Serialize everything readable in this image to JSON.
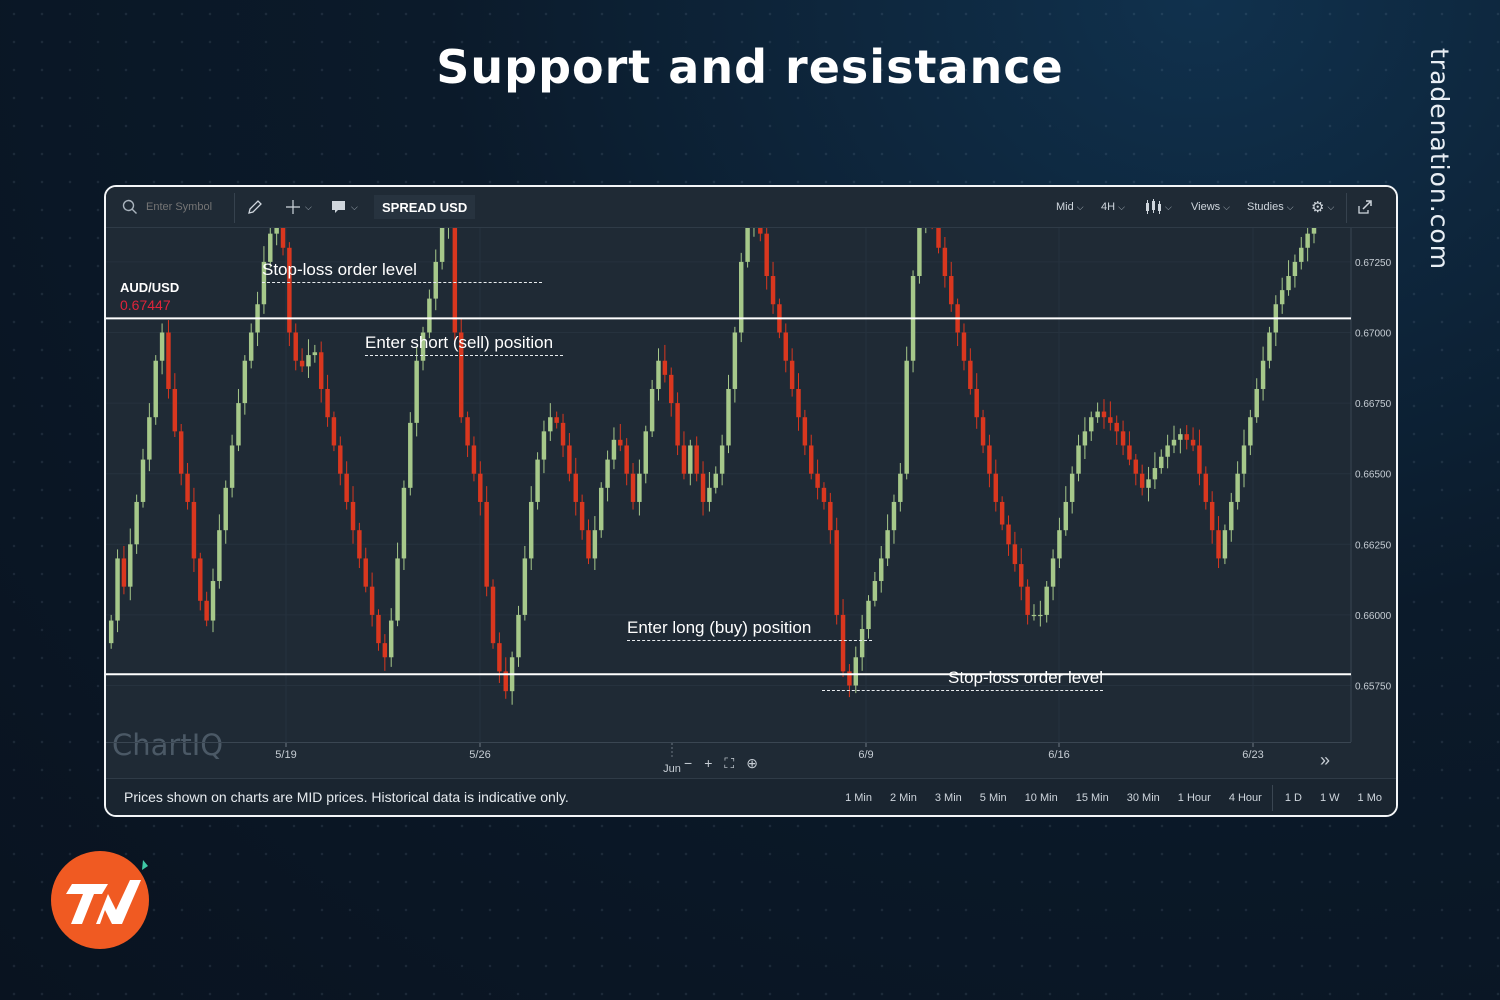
{
  "page": {
    "headline": "Support and resistance",
    "brand": "tradenation.com",
    "logo_icon": "tradenation-logo-icon"
  },
  "toolbar": {
    "symbol_placeholder": "Enter Symbol",
    "spread_label": "SPREAD USD",
    "mid_label": "Mid",
    "interval_label": "4H",
    "views_label": "Views",
    "studies_label": "Studies"
  },
  "symbol": {
    "name": "AUD/USD",
    "price": "0.67447"
  },
  "annotations": {
    "stop_loss_top": "Stop-loss order level",
    "enter_short": "Enter short (sell) position",
    "enter_long": "Enter long (buy) position",
    "stop_loss_bottom": "Stop-loss order level"
  },
  "footer": {
    "disclaimer": "Prices shown on charts are MID prices. Historical data is indicative only.",
    "ranges": [
      "1 Min",
      "2 Min",
      "3 Min",
      "5 Min",
      "10 Min",
      "15 Min",
      "30 Min",
      "1 Hour",
      "4 Hour",
      "1 D",
      "1 W",
      "1 Mo"
    ]
  },
  "watermark": "ChartIQ",
  "colors": {
    "up": "#a6c88a",
    "down": "#d9371f",
    "price_badge": "#c8351c",
    "level_line": "#ffffff"
  },
  "chart_data": {
    "type": "candlestick",
    "symbol": "AUD/USD",
    "interval": "4H",
    "y_ticks": [
      "0.67250",
      "0.67000",
      "0.66750",
      "0.66500",
      "0.66250",
      "0.66000",
      "0.65750"
    ],
    "ylim": [
      0.6555,
      0.6737
    ],
    "x_ticks": [
      "5/19",
      "5/26",
      "6/9",
      "6/16",
      "6/23"
    ],
    "x_month_label": "Jun",
    "current_price": "0.67447",
    "resistance": 0.6705,
    "support": 0.6579,
    "closes": [
      0.6598,
      0.662,
      0.661,
      0.6625,
      0.664,
      0.6655,
      0.667,
      0.669,
      0.67,
      0.668,
      0.6665,
      0.665,
      0.664,
      0.662,
      0.6605,
      0.6598,
      0.6612,
      0.663,
      0.6645,
      0.666,
      0.6675,
      0.669,
      0.67,
      0.671,
      0.6725,
      0.6735,
      0.6745,
      0.673,
      0.67,
      0.669,
      0.6688,
      0.6692,
      0.6693,
      0.668,
      0.667,
      0.666,
      0.665,
      0.664,
      0.663,
      0.662,
      0.661,
      0.66,
      0.659,
      0.6585,
      0.6598,
      0.662,
      0.6645,
      0.6668,
      0.669,
      0.67,
      0.6712,
      0.6725,
      0.6738,
      0.6744,
      0.67,
      0.667,
      0.666,
      0.665,
      0.664,
      0.661,
      0.659,
      0.658,
      0.6573,
      0.6585,
      0.66,
      0.662,
      0.664,
      0.6655,
      0.6665,
      0.667,
      0.6668,
      0.666,
      0.665,
      0.664,
      0.663,
      0.662,
      0.663,
      0.6645,
      0.6655,
      0.6662,
      0.666,
      0.665,
      0.664,
      0.665,
      0.6665,
      0.668,
      0.669,
      0.6685,
      0.6675,
      0.666,
      0.665,
      0.666,
      0.665,
      0.664,
      0.6645,
      0.665,
      0.666,
      0.668,
      0.67,
      0.6725,
      0.6738,
      0.6744,
      0.6735,
      0.672,
      0.671,
      0.67,
      0.669,
      0.668,
      0.667,
      0.666,
      0.665,
      0.6645,
      0.664,
      0.663,
      0.66,
      0.658,
      0.6575,
      0.6585,
      0.6595,
      0.6605,
      0.6612,
      0.662,
      0.663,
      0.664,
      0.665,
      0.669,
      0.672,
      0.674,
      0.6745,
      0.674,
      0.673,
      0.672,
      0.671,
      0.67,
      0.669,
      0.668,
      0.667,
      0.666,
      0.665,
      0.664,
      0.6632,
      0.6625,
      0.6618,
      0.661,
      0.66,
      0.66,
      0.66,
      0.661,
      0.662,
      0.663,
      0.664,
      0.665,
      0.666,
      0.6665,
      0.667,
      0.6672,
      0.667,
      0.6668,
      0.6665,
      0.666,
      0.6655,
      0.665,
      0.6645,
      0.6648,
      0.6652,
      0.6656,
      0.666,
      0.6662,
      0.6664,
      0.6662,
      0.666,
      0.665,
      0.664,
      0.663,
      0.662,
      0.663,
      0.664,
      0.665,
      0.666,
      0.667,
      0.668,
      0.669,
      0.67,
      0.671,
      0.6715,
      0.672,
      0.6725,
      0.673,
      0.6735,
      0.674,
      0.6742,
      0.6743,
      0.6744,
      0.6745,
      0.6745
    ]
  }
}
